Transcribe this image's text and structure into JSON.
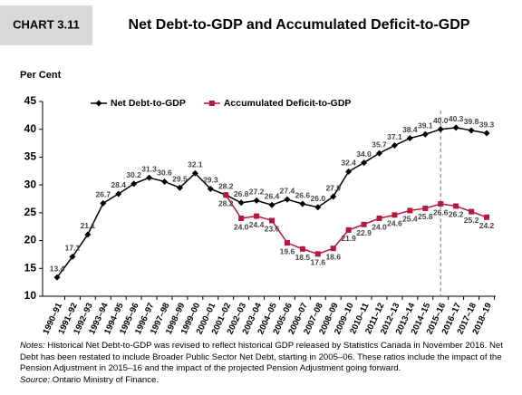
{
  "chart_data": {
    "type": "line",
    "header_label": "CHART 3.11",
    "title": "Net Debt-to-GDP and Accumulated Deficit-to-GDP",
    "y_label": "Per Cent",
    "categories": [
      "1990–91",
      "1991–92",
      "1992–93",
      "1993–94",
      "1994–95",
      "1995–96",
      "1996–97",
      "1997–98",
      "1998–99",
      "1999–00",
      "2000–01",
      "2001–02",
      "2002–03",
      "2003–04",
      "2004–05",
      "2005–06",
      "2006–07",
      "2007–08",
      "2008–09",
      "2009–10",
      "2010–11",
      "2011–12",
      "2012–13",
      "2013–14",
      "2014–15",
      "2015–16",
      "2016–17",
      "2017–18",
      "2018–19"
    ],
    "series": [
      {
        "name": "Net Debt-to-GDP",
        "color": "#000000",
        "marker": "diamond",
        "label_position": "above",
        "values": [
          13.4,
          17.1,
          21.1,
          26.7,
          28.4,
          30.2,
          31.3,
          30.6,
          29.5,
          32.1,
          29.3,
          28.2,
          26.8,
          27.2,
          26.4,
          27.4,
          26.6,
          26.0,
          27.9,
          32.4,
          34.0,
          35.7,
          37.1,
          38.4,
          39.1,
          40.0,
          40.3,
          39.8,
          39.3
        ],
        "value_labels": [
          "13.4",
          "17.1",
          "21.1",
          "26.7",
          "28.4",
          "30.2",
          "31.3",
          "30.6",
          "29.5",
          "32.1",
          "29.3",
          "28.2",
          "26.8",
          "27.2",
          "26.4",
          "27.4",
          "26.6",
          "26.0",
          "27.9",
          "32.4",
          "34.0",
          "35.7",
          "37.1",
          "38.4",
          "39.1",
          "40.0",
          "40.3",
          "39.8",
          "39.3"
        ]
      },
      {
        "name": "Accumulated Deficit-to-GDP",
        "color": "#b5173d",
        "marker": "square",
        "label_position": "below",
        "values": [
          null,
          null,
          null,
          null,
          null,
          null,
          null,
          null,
          null,
          null,
          null,
          28.2,
          24.0,
          24.4,
          23.6,
          19.6,
          18.5,
          17.6,
          18.6,
          21.9,
          22.9,
          24.0,
          24.6,
          25.4,
          25.8,
          26.6,
          26.2,
          25.2,
          24.2
        ],
        "value_labels": [
          null,
          null,
          null,
          null,
          null,
          null,
          null,
          null,
          null,
          null,
          null,
          "28.2",
          "24.0",
          "24.4",
          "23.6",
          "19.6",
          "18.5",
          "17.6",
          "18.6",
          "21.9",
          "22.9",
          "24.0",
          "24.6",
          "25.4",
          "25.8",
          "26.6",
          "26.2",
          "25.2",
          "24.2"
        ]
      }
    ],
    "ylim": [
      10,
      45
    ],
    "yticks": [
      10,
      15,
      20,
      25,
      30,
      35,
      40,
      45
    ],
    "grid": false,
    "vline_category": "2015–16",
    "notes_label": "Notes:",
    "notes_text": "Historical Net Debt-to-GDP was revised to reflect historical GDP released by Statistics  Canada in November 2016. Net Debt has been restated to include Broader Public Sector Net Debt, starting in 2005–06. These ratios include the impact of the Pension Adjustment in 2015–16 and the impact of the projected Pension Adjustment going forward.",
    "source_label": "Source:",
    "source_text": "Ontario Ministry of Finance."
  }
}
